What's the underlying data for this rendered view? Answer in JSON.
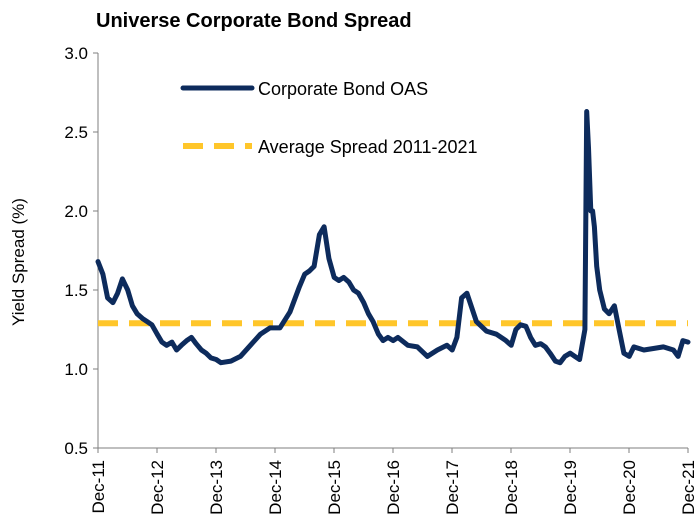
{
  "chart_data": {
    "type": "line",
    "title": "Universe Corporate Bond Spread",
    "ylabel": "Yield Spread (%)",
    "xlabel": "",
    "ylim": [
      0.5,
      3.0
    ],
    "yticks": [
      0.5,
      1.0,
      1.5,
      2.0,
      2.5,
      3.0
    ],
    "ytick_labels": [
      "0.5",
      "1.0",
      "1.5",
      "2.0",
      "2.5",
      "3.0"
    ],
    "xlim": [
      2011.917,
      2021.917
    ],
    "xticks": [
      2011.917,
      2012.917,
      2013.917,
      2014.917,
      2015.917,
      2016.917,
      2017.917,
      2018.917,
      2019.917,
      2020.917,
      2021.917
    ],
    "xtick_labels": [
      "Dec-11",
      "Dec-12",
      "Dec-13",
      "Dec-14",
      "Dec-15",
      "Dec-16",
      "Dec-17",
      "Dec-18",
      "Dec-19",
      "Dec-20",
      "Dec-21"
    ],
    "grid": false,
    "legend_position": "top-left",
    "series": [
      {
        "name": "Corporate Bond OAS",
        "color": "#0d2b5c",
        "style": "solid",
        "x": [
          2011.917,
          2012.0,
          2012.08,
          2012.17,
          2012.25,
          2012.33,
          2012.42,
          2012.5,
          2012.58,
          2012.67,
          2012.75,
          2012.83,
          2012.92,
          2013.0,
          2013.08,
          2013.17,
          2013.25,
          2013.33,
          2013.42,
          2013.5,
          2013.58,
          2013.67,
          2013.75,
          2013.83,
          2013.92,
          2014.0,
          2014.17,
          2014.33,
          2014.5,
          2014.67,
          2014.83,
          2015.0,
          2015.17,
          2015.33,
          2015.42,
          2015.5,
          2015.58,
          2015.67,
          2015.75,
          2015.83,
          2015.92,
          2016.0,
          2016.08,
          2016.17,
          2016.25,
          2016.33,
          2016.42,
          2016.5,
          2016.58,
          2016.67,
          2016.75,
          2016.83,
          2016.92,
          2017.0,
          2017.17,
          2017.33,
          2017.5,
          2017.67,
          2017.83,
          2017.92,
          2018.0,
          2018.08,
          2018.17,
          2018.33,
          2018.5,
          2018.67,
          2018.83,
          2018.92,
          2019.0,
          2019.08,
          2019.17,
          2019.25,
          2019.33,
          2019.42,
          2019.5,
          2019.58,
          2019.67,
          2019.75,
          2019.83,
          2019.92,
          2020.0,
          2020.08,
          2020.17,
          2020.2,
          2020.23,
          2020.27,
          2020.3,
          2020.33,
          2020.37,
          2020.42,
          2020.5,
          2020.58,
          2020.67,
          2020.75,
          2020.83,
          2020.92,
          2021.0,
          2021.17,
          2021.33,
          2021.5,
          2021.67,
          2021.75,
          2021.83,
          2021.917
        ],
        "y": [
          1.68,
          1.6,
          1.45,
          1.42,
          1.48,
          1.57,
          1.5,
          1.4,
          1.35,
          1.32,
          1.3,
          1.28,
          1.22,
          1.17,
          1.15,
          1.17,
          1.12,
          1.15,
          1.18,
          1.2,
          1.16,
          1.12,
          1.1,
          1.07,
          1.06,
          1.04,
          1.05,
          1.08,
          1.15,
          1.22,
          1.26,
          1.26,
          1.36,
          1.52,
          1.6,
          1.62,
          1.65,
          1.85,
          1.9,
          1.7,
          1.58,
          1.56,
          1.58,
          1.55,
          1.5,
          1.48,
          1.42,
          1.35,
          1.3,
          1.22,
          1.18,
          1.2,
          1.18,
          1.2,
          1.15,
          1.14,
          1.08,
          1.12,
          1.15,
          1.12,
          1.2,
          1.45,
          1.48,
          1.3,
          1.24,
          1.22,
          1.18,
          1.15,
          1.25,
          1.28,
          1.27,
          1.2,
          1.15,
          1.16,
          1.14,
          1.1,
          1.05,
          1.04,
          1.08,
          1.1,
          1.08,
          1.06,
          1.25,
          2.63,
          2.4,
          2.0,
          2.0,
          1.9,
          1.65,
          1.5,
          1.38,
          1.35,
          1.4,
          1.25,
          1.1,
          1.08,
          1.14,
          1.12,
          1.13,
          1.14,
          1.12,
          1.08,
          1.18,
          1.17
        ]
      },
      {
        "name": "Average Spread 2011-2021",
        "color": "#ffc62a",
        "style": "dashed",
        "x": [
          2011.917,
          2021.917
        ],
        "y": [
          1.29,
          1.29
        ]
      }
    ]
  }
}
